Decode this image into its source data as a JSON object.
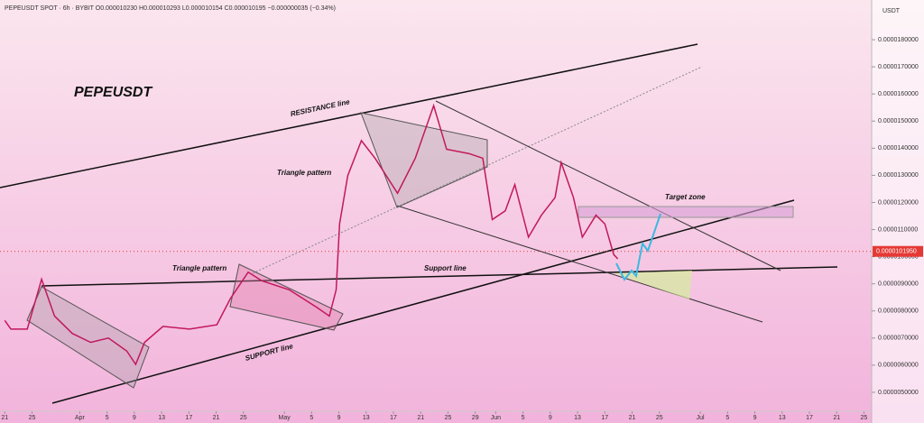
{
  "chart_data": {
    "type": "line",
    "header": "PEPEUSDT SPOT · 6h · BYBIT  O0.000010230 H0.000010293 L0.000010154 C0.000010195 −0.000000035 (−0.34%)",
    "title": "PEPEUSDT",
    "unit": "USDT",
    "annotations": [
      "RESISTANCE line",
      "Triangle pattern",
      "Triangle pattern",
      "Support line",
      "SUPPORT line",
      "Target zone"
    ],
    "last_price": {
      "value": 1.0195e-05,
      "label": "0.0000101950"
    },
    "xlim": [
      -0.7,
      127
    ],
    "xticks": [
      {
        "value": 0,
        "label": "21"
      },
      {
        "value": 4,
        "label": "25"
      },
      {
        "value": 11,
        "label": "Apr"
      },
      {
        "value": 15,
        "label": "5"
      },
      {
        "value": 19,
        "label": "9"
      },
      {
        "value": 23,
        "label": "13"
      },
      {
        "value": 27,
        "label": "17"
      },
      {
        "value": 31,
        "label": "21"
      },
      {
        "value": 35,
        "label": "25"
      },
      {
        "value": 41,
        "label": "May"
      },
      {
        "value": 45,
        "label": "5"
      },
      {
        "value": 49,
        "label": "9"
      },
      {
        "value": 53,
        "label": "13"
      },
      {
        "value": 57,
        "label": "17"
      },
      {
        "value": 61,
        "label": "21"
      },
      {
        "value": 65,
        "label": "25"
      },
      {
        "value": 69,
        "label": "29"
      },
      {
        "value": 72,
        "label": "Jun"
      },
      {
        "value": 76,
        "label": "5"
      },
      {
        "value": 80,
        "label": "9"
      },
      {
        "value": 84,
        "label": "13"
      },
      {
        "value": 88,
        "label": "17"
      },
      {
        "value": 92,
        "label": "21"
      },
      {
        "value": 96,
        "label": "25"
      },
      {
        "value": 102,
        "label": "Jul"
      },
      {
        "value": 106,
        "label": "5"
      },
      {
        "value": 110,
        "label": "9"
      },
      {
        "value": 114,
        "label": "13"
      },
      {
        "value": 118,
        "label": "17"
      },
      {
        "value": 122,
        "label": "21"
      },
      {
        "value": 126,
        "label": "25"
      }
    ],
    "ylim": [
      4.3e-06,
      1.88e-05
    ],
    "yticks": [
      {
        "value": 5e-06,
        "label": "0.0000050000"
      },
      {
        "value": 6e-06,
        "label": "0.0000060000"
      },
      {
        "value": 7e-06,
        "label": "0.0000070000"
      },
      {
        "value": 8e-06,
        "label": "0.0000080000"
      },
      {
        "value": 9e-06,
        "label": "0.0000090000"
      },
      {
        "value": 1e-05,
        "label": "0.0000100000"
      },
      {
        "value": 1.1e-05,
        "label": "0.0000110000"
      },
      {
        "value": 1.2e-05,
        "label": "0.0000120000"
      },
      {
        "value": 1.3e-05,
        "label": "0.0000130000"
      },
      {
        "value": 1.4e-05,
        "label": "0.0000140000"
      },
      {
        "value": 1.5e-05,
        "label": "0.0000150000"
      },
      {
        "value": 1.6e-05,
        "label": "0.0000160000"
      },
      {
        "value": 1.7e-05,
        "label": "0.0000170000"
      },
      {
        "value": 1.8e-05,
        "label": "0.0000180000"
      }
    ],
    "x": [
      0,
      0.9,
      3.3,
      5.4,
      7.3,
      9.9,
      12.6,
      15.2,
      17.9,
      19.2,
      20.5,
      23.2,
      27.1,
      31.1,
      33.1,
      35.7,
      37.7,
      41.7,
      45.7,
      47.6,
      48.6,
      49.1,
      50.3,
      52.3,
      54.3,
      57.6,
      60.2,
      62.9,
      64.8,
      68.1,
      70.1,
      71.5,
      73.4,
      74.8,
      76.8,
      78.7,
      80.7,
      81.6,
      83.4,
      84.7,
      86.7,
      88.0,
      89.3,
      89.9
    ],
    "series": [
      {
        "color": "#c2185b",
        "values": [
          7.65e-06,
          7.33e-06,
          7.33e-06,
          9.17e-06,
          7.81e-06,
          7.17e-06,
          6.84e-06,
          7e-06,
          6.52e-06,
          6.03e-06,
          6.84e-06,
          7.43e-06,
          7.33e-06,
          7.49e-06,
          8.46e-06,
          9.43e-06,
          9.11e-06,
          8.78e-06,
          8.14e-06,
          7.81e-06,
          8.78e-06,
          1.121e-05,
          1.299e-05,
          1.428e-05,
          1.363e-05,
          1.234e-05,
          1.363e-05,
          1.557e-05,
          1.396e-05,
          1.38e-05,
          1.363e-05,
          1.137e-05,
          1.169e-05,
          1.266e-05,
          1.072e-05,
          1.153e-05,
          1.218e-05,
          1.347e-05,
          1.218e-05,
          1.072e-05,
          1.153e-05,
          1.121e-05,
          1.008e-05,
          9.92e-06
        ]
      }
    ]
  }
}
